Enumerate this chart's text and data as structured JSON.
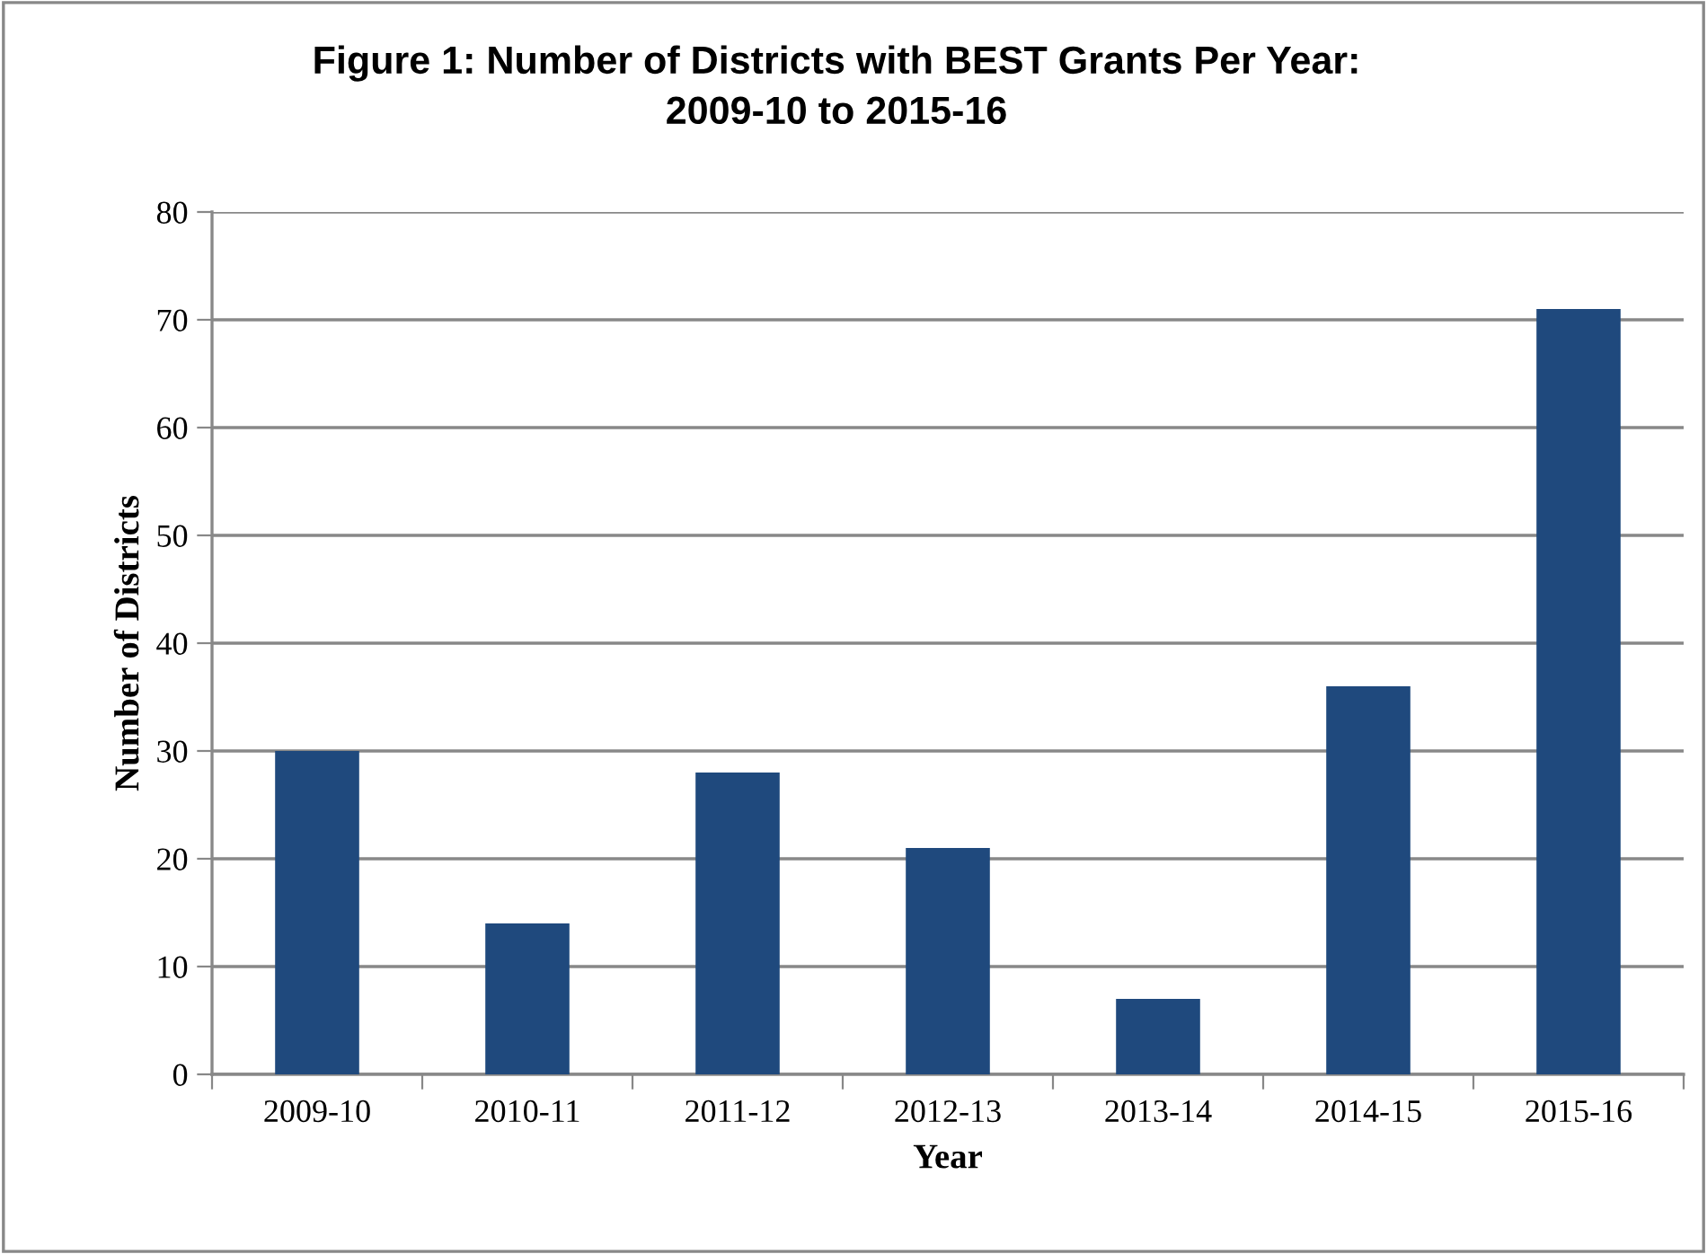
{
  "chart_data": {
    "type": "bar",
    "title": "Figure 1: Number of Districts with BEST Grants Per Year:\n2009-10 to 2015-16",
    "xlabel": "Year",
    "ylabel": "Number of Districts",
    "categories": [
      "2009-10",
      "2010-11",
      "2011-12",
      "2012-13",
      "2013-14",
      "2014-15",
      "2015-16"
    ],
    "values": [
      30,
      14,
      28,
      21,
      7,
      36,
      71
    ],
    "color": "#1f497d",
    "ylim": [
      0,
      80
    ],
    "yticks": [
      0,
      10,
      20,
      30,
      40,
      50,
      60,
      70,
      80
    ],
    "grid": "y",
    "legend": false
  }
}
